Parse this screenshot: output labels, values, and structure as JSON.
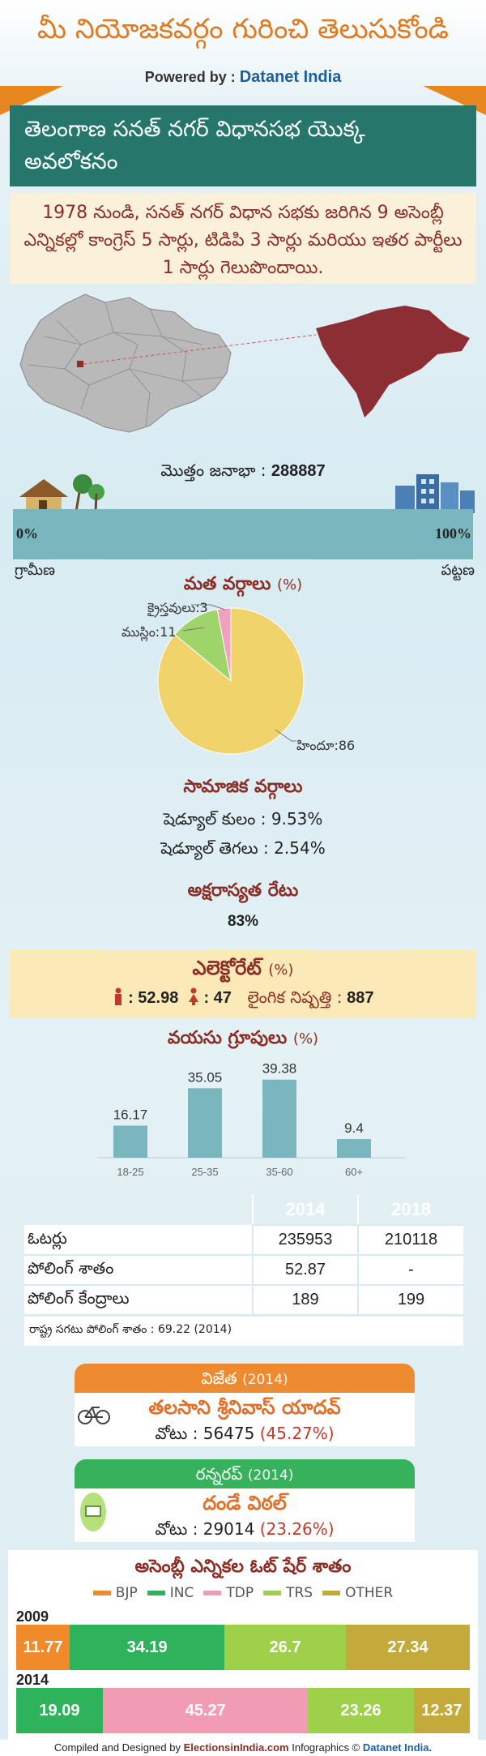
{
  "header": {
    "title": "మీ నియోజకవర్గం గురించి తెలుసుకోండి",
    "powered_label": "Powered by :",
    "powered_brand": "Datanet India"
  },
  "main_title": "తెలంగాణ సనత్ నగర్ విధానసభ యొక్క అవలోకనం",
  "intro": "1978 నుండి, సనత్ నగర్ విధాన సభకు జరిగిన 9 అసెంబ్లీ ఎన్నికల్లో కాంగ్రెస్ 5 సార్లు, టిడిపి 3 సార్లు మరియు ఇతర పార్టీలు 1 సార్లు గెలుపొందాయి.",
  "population": {
    "label": "మొత్తం జనాభా :",
    "value": "288887"
  },
  "urban_rural": {
    "left_pct": "0%",
    "right_pct": "100%",
    "rural_label": "గ్రామీణ",
    "urban_label": "పట్టణ",
    "urban_fraction": 1.0
  },
  "religion": {
    "title": "మత వర్గాలు",
    "unit": "(%)",
    "labels": {
      "christian": "క్రైస్తవులు:3",
      "muslim": "ముస్లిం:11",
      "hindu": "హిందూ:86"
    }
  },
  "social": {
    "title": "సామాజిక వర్గాలు",
    "rows": [
      {
        "label": "షెడ్యూల్ కులం :",
        "value": "9.53%"
      },
      {
        "label": "షెడ్యూల్ తెగలు :",
        "value": "2.54%"
      }
    ]
  },
  "literacy": {
    "title": "అక్షరాస్యత రేటు",
    "value": "83%"
  },
  "electorate": {
    "title": "ఎలెక్టోరేట్",
    "unit": "(%)",
    "male": ": 52.98",
    "female": ": 47",
    "ratio_label": "లైంగిక నిష్పత్తి :",
    "ratio_value": "887"
  },
  "age": {
    "title": "వయసు గ్రూపులు",
    "unit": "(%)"
  },
  "voter_table": {
    "headers": [
      "2014",
      "2018"
    ],
    "rows": [
      {
        "label": "ఓటర్లు",
        "v2014": "235953",
        "v2018": "210118"
      },
      {
        "label": "పోలింగ్ శాతం",
        "v2014": "52.87",
        "v2018": "-"
      },
      {
        "label": "పోలింగ్ కేంద్రాలు",
        "v2014": "189",
        "v2018": "199"
      }
    ],
    "state_note": "రాష్ట్ర సగటు పోలింగ్ శాతం : 69.22 (2014)"
  },
  "winner": {
    "head": "విజేత",
    "year": "(2014)",
    "name": "తలసాని శ్రీనివాస్ యాదవ్",
    "votes_label": "వోటు : 56475",
    "votes_pct": "(45.27%)"
  },
  "runner": {
    "head": "రన్నరప్",
    "year": "(2014)",
    "name": "దండే విఠల్",
    "votes_label": "వోటు : 29014",
    "votes_pct": "(23.26%)"
  },
  "vote_share": {
    "title": "అసెంబ్లీ ఎన్నికల ఓట్ షేర్ శాతం",
    "legend": [
      {
        "name": "BJP",
        "color": "#f08a2b"
      },
      {
        "name": "INC",
        "color": "#2fb25c"
      },
      {
        "name": "TDP",
        "color": "#f19bb4"
      },
      {
        "name": "TRS",
        "color": "#9ed04a"
      },
      {
        "name": "OTHER",
        "color": "#c3aa3a"
      }
    ],
    "years": [
      {
        "year": "2009",
        "segments": [
          {
            "party": "BJP",
            "value": 11.77,
            "label": "11.77"
          },
          {
            "party": "INC",
            "value": 34.19,
            "label": "34.19"
          },
          {
            "party": "TRS",
            "value": 26.7,
            "label": "26.7"
          },
          {
            "party": "OTHER",
            "value": 27.34,
            "label": "27.34"
          }
        ]
      },
      {
        "year": "2014",
        "segments": [
          {
            "party": "INC",
            "value": 19.09,
            "label": "19.09"
          },
          {
            "party": "TDP",
            "value": 45.27,
            "label": "45.27"
          },
          {
            "party": "TRS",
            "value": 23.26,
            "label": "23.26"
          },
          {
            "party": "OTHER",
            "value": 12.37,
            "label": "12.37"
          }
        ]
      }
    ]
  },
  "footer": {
    "compiled": "Compiled and Designed by",
    "brand1": "ElectionsinIndia.com",
    "infographics": "Infographics ©",
    "brand2": "Datanet India."
  },
  "chart_data": [
    {
      "type": "pie",
      "categories": [
        "హిందూ",
        "ముస్లిం",
        "క్రైస్తవులు"
      ],
      "values": [
        86,
        11,
        3
      ],
      "colors": [
        "#f0d36a",
        "#9ed46a",
        "#f1a0c0"
      ]
    },
    {
      "type": "bar",
      "categories": [
        "18-25",
        "25-35",
        "35-60",
        "60+"
      ],
      "values": [
        16.17,
        35.05,
        39.38,
        9.4
      ],
      "ylim": [
        0,
        45
      ],
      "color": "#7ab6bd"
    }
  ]
}
